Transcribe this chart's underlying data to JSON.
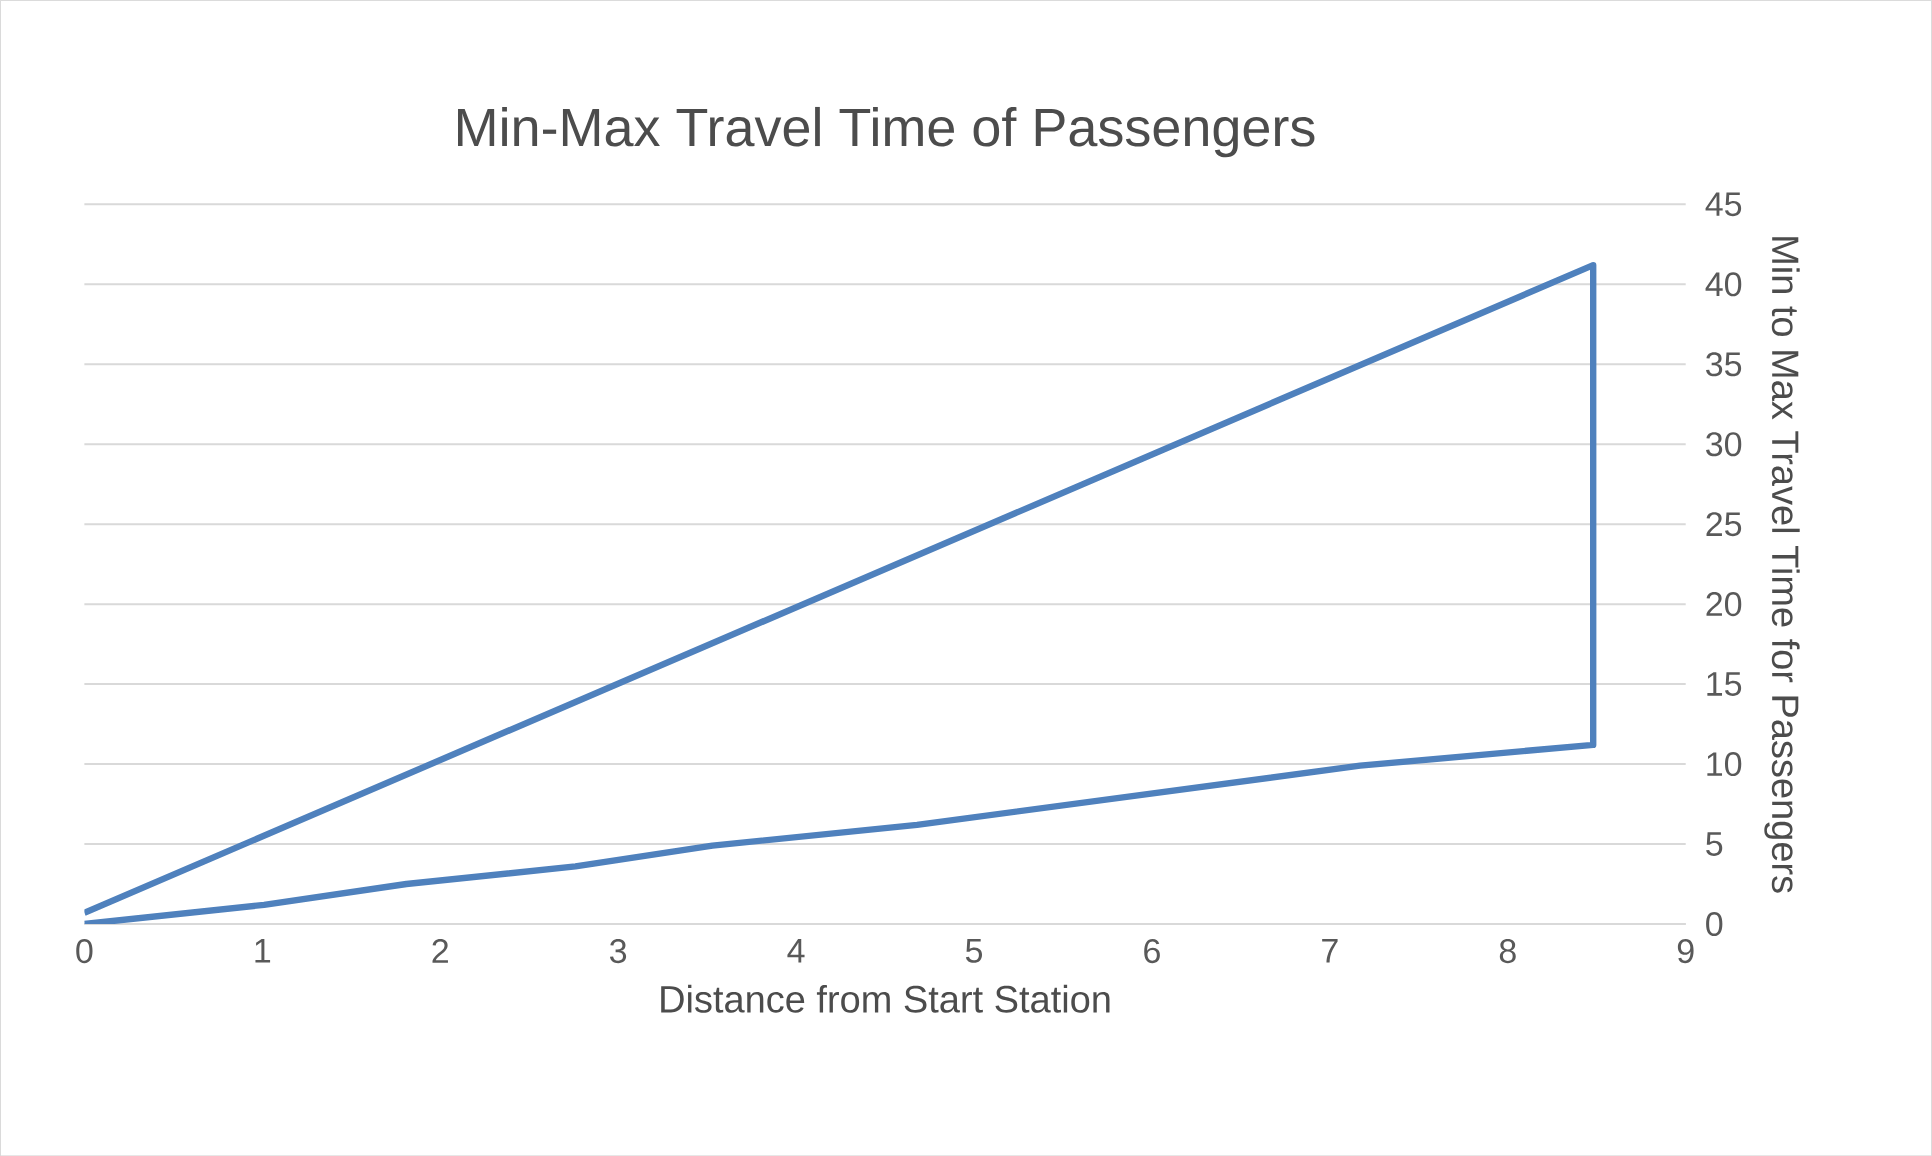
{
  "chart_data": {
    "type": "line",
    "title": "Min-Max Travel Time of Passengers",
    "xlabel": "Distance from Start Station",
    "ylabel": "Min to Max Travel Time for Passengers",
    "series": [
      {
        "color": "#4f81bd",
        "x": [
          0,
          1.01,
          1.81,
          2.76,
          3.53,
          4.68,
          7.17,
          8.48,
          8.48,
          0
        ],
        "values": [
          0,
          1.2,
          2.5,
          3.6,
          4.9,
          6.2,
          9.9,
          11.2,
          41.2,
          0.7
        ]
      }
    ],
    "xlim": [
      0,
      9
    ],
    "xticks": [
      0,
      1,
      2,
      3,
      4,
      5,
      6,
      7,
      8,
      9
    ],
    "ylim": [
      0,
      45
    ],
    "yticks": [
      0,
      5,
      10,
      15,
      20,
      25,
      30,
      35,
      40,
      45
    ],
    "grid": "y",
    "marker": "none",
    "line_style": "solid"
  }
}
